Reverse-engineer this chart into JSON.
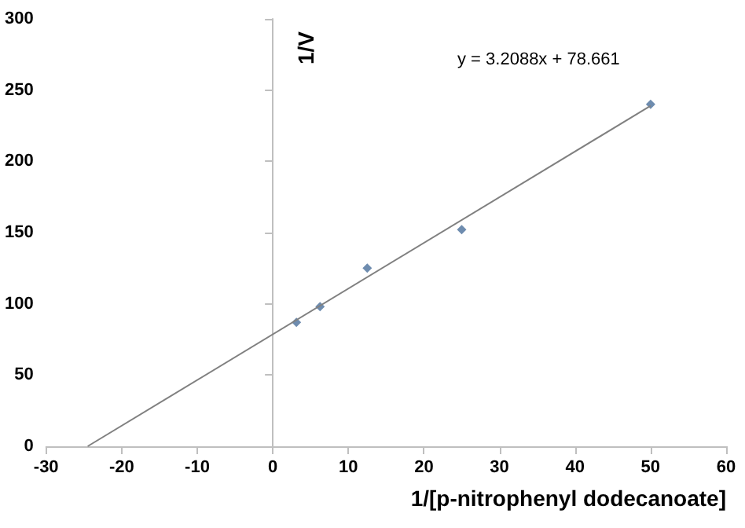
{
  "chart_data": {
    "type": "scatter",
    "xlabel": "1/[p-nitrophenyl dodecanoate]",
    "ylabel": "1/V",
    "annotations": [
      "y = 3.2088x + 78.661"
    ],
    "series": [
      {
        "color": "#4a6f9b",
        "marker": "diamond",
        "x": [
          3.125,
          6.25,
          12.5,
          25,
          50
        ],
        "values": [
          87,
          98,
          125,
          152,
          240
        ]
      },
      {
        "type": "line",
        "color": "#808080",
        "marker": "none",
        "x": [
          -24.5,
          50
        ],
        "values": [
          0,
          239
        ]
      }
    ],
    "xlim": [
      -30,
      60
    ],
    "xticks": [
      -30,
      -20,
      -10,
      0,
      10,
      20,
      30,
      40,
      50,
      60
    ],
    "ylim": [
      0,
      300
    ],
    "yticks": [
      0,
      50,
      100,
      150,
      200,
      250,
      300
    ]
  }
}
